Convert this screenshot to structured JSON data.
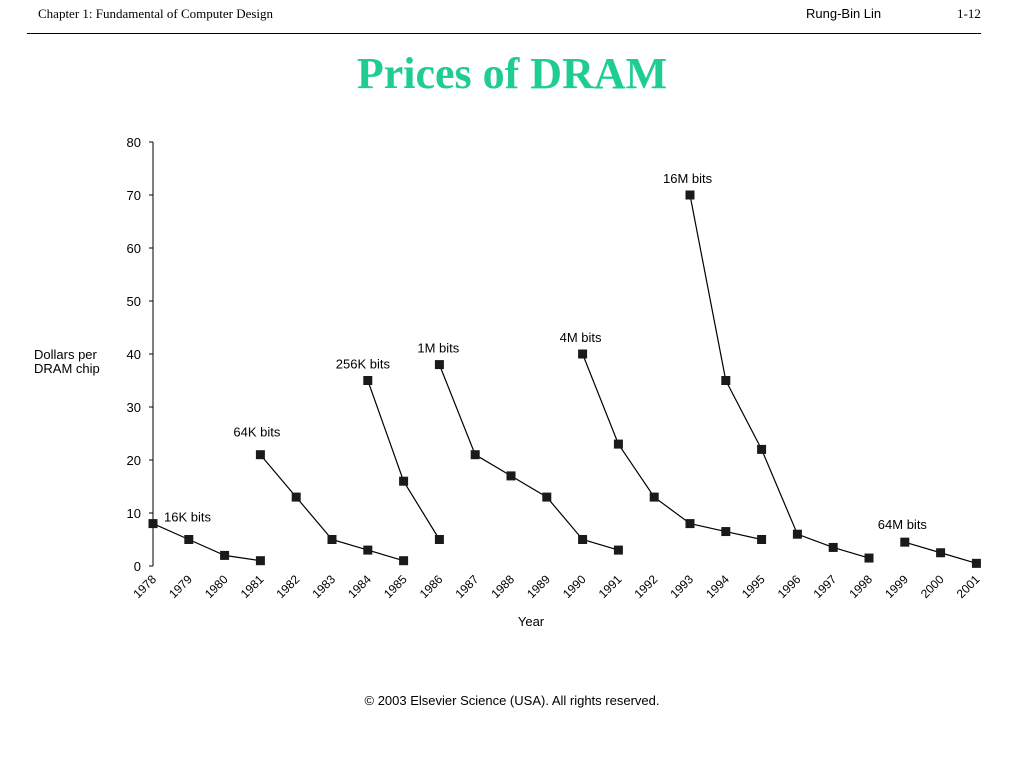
{
  "header": {
    "left": "Chapter 1: Fundamental of Computer Design",
    "author": "Rung-Bin Lin",
    "page": "1-12"
  },
  "slide_title": "Prices of DRAM",
  "ylabel_lines": [
    "Dollars per",
    "DRAM chip"
  ],
  "copyright": "© 2003 Elsevier Science (USA). All rights reserved.",
  "chart_data": {
    "type": "line",
    "title": "",
    "xlabel": "Year",
    "ylabel": "Dollars per DRAM chip",
    "ylim": [
      0,
      80
    ],
    "yticks": [
      0,
      10,
      20,
      30,
      40,
      50,
      60,
      70,
      80
    ],
    "x": [
      "1978",
      "1979",
      "1980",
      "1981",
      "1982",
      "1983",
      "1984",
      "1985",
      "1986",
      "1987",
      "1988",
      "1989",
      "1990",
      "1991",
      "1992",
      "1993",
      "1994",
      "1995",
      "1996",
      "1997",
      "1998",
      "1999",
      "2000",
      "2001"
    ],
    "grid": false,
    "legend": "none (series labeled directly on chart)",
    "series": [
      {
        "name": "16K bits",
        "x": [
          "1978",
          "1979",
          "1980",
          "1981"
        ],
        "values": [
          8,
          5,
          2,
          1
        ]
      },
      {
        "name": "64K bits",
        "x": [
          "1981",
          "1982",
          "1983",
          "1984",
          "1985"
        ],
        "values": [
          21,
          13,
          5,
          3,
          1
        ]
      },
      {
        "name": "256K bits",
        "x": [
          "1984",
          "1985",
          "1986"
        ],
        "values": [
          35,
          16,
          5
        ]
      },
      {
        "name": "1M bits",
        "x": [
          "1986",
          "1987",
          "1988",
          "1989",
          "1990",
          "1991"
        ],
        "values": [
          38,
          21,
          17,
          13,
          5,
          3
        ]
      },
      {
        "name": "4M bits",
        "x": [
          "1990",
          "1991",
          "1992",
          "1993",
          "1994",
          "1995"
        ],
        "values": [
          40,
          23,
          13,
          8,
          6.5,
          5
        ]
      },
      {
        "name": "16M bits",
        "x": [
          "1993",
          "1994",
          "1995",
          "1996",
          "1997",
          "1998"
        ],
        "values": [
          70,
          35,
          22,
          6,
          3.5,
          1.5
        ]
      },
      {
        "name": "64M bits",
        "x": [
          "1999",
          "2000",
          "2001"
        ],
        "values": [
          4.5,
          2.5,
          0.5
        ]
      }
    ],
    "colors": {
      "line": "#000000",
      "marker": "#1a1a1a"
    }
  }
}
